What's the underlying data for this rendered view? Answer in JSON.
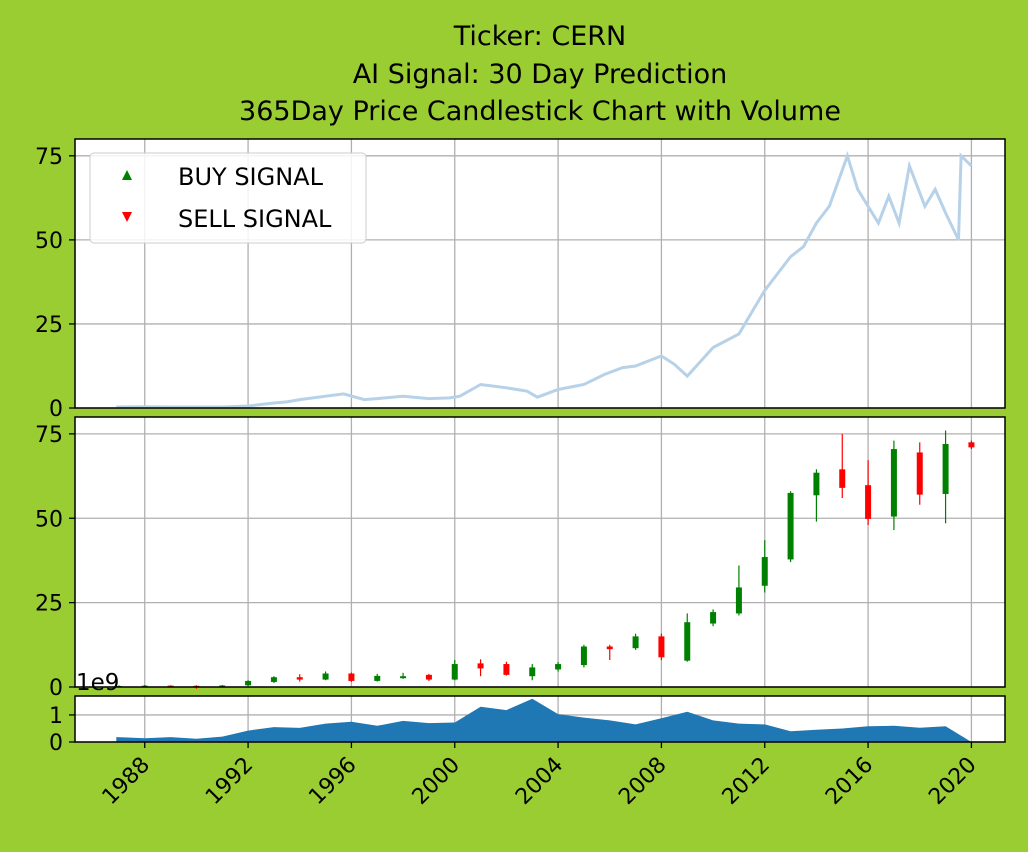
{
  "colors": {
    "background": "#9acd32",
    "price_line": "#b7d2e8",
    "up": "#008000",
    "down": "#ff0000",
    "volume": "#1f77b4",
    "grid": "#b0b0b0"
  },
  "chart_data": [
    {
      "id": "price-line-panel",
      "type": "line",
      "title": [
        "Ticker: CERN",
        "AI Signal: 30 Day Prediction",
        "365Day Price Candlestick Chart with Volume"
      ],
      "ylim": [
        0,
        80
      ],
      "yticks": [
        0,
        25,
        50,
        75
      ],
      "xlim": [
        1985.3,
        2021.3
      ],
      "grid": true,
      "legend": {
        "position": "top-left",
        "entries": [
          {
            "label": "BUY SIGNAL",
            "marker": "triangle-up",
            "color": "#008000"
          },
          {
            "label": "SELL SIGNAL",
            "marker": "triangle-down",
            "color": "#ff0000"
          }
        ]
      },
      "x": [
        1986.9,
        1988,
        1989,
        1990,
        1991,
        1992,
        1993,
        1993.5,
        1994,
        1995,
        1995.7,
        1996.5,
        1997,
        1998,
        1999,
        1999.8,
        2000.2,
        2001,
        2001.5,
        2002,
        2002.8,
        2003.2,
        2004,
        2005,
        2005.8,
        2006.5,
        2007,
        2008,
        2008.5,
        2009,
        2010,
        2011,
        2012,
        2012.5,
        2013,
        2013.5,
        2014,
        2014.5,
        2015.2,
        2015.6,
        2016,
        2016.4,
        2016.8,
        2017.2,
        2017.6,
        2018.2,
        2018.6,
        2019,
        2019.5,
        2019.6,
        2020
      ],
      "values": [
        0.3,
        0.4,
        0.3,
        0.3,
        0.3,
        0.6,
        1.5,
        1.8,
        2.5,
        3.5,
        4.2,
        2.5,
        2.8,
        3.5,
        2.8,
        3.0,
        3.5,
        7.0,
        6.5,
        6.0,
        5.0,
        3.2,
        5.5,
        7.0,
        10.0,
        12.0,
        12.5,
        15.5,
        13.0,
        9.5,
        18.0,
        22.0,
        35.0,
        40.0,
        45.0,
        48.0,
        55.0,
        60.0,
        75.0,
        65.0,
        60.0,
        55.0,
        63.0,
        55.0,
        72.0,
        60.0,
        65.0,
        58.0,
        50.0,
        75.0,
        72.0
      ]
    },
    {
      "id": "candlestick-panel",
      "type": "candlestick",
      "ylim": [
        0,
        80
      ],
      "yticks": [
        0,
        25,
        50,
        75
      ],
      "xlim": [
        1985.3,
        2021.3
      ],
      "grid": true,
      "candles": [
        {
          "x": 1987,
          "open": 0.2,
          "high": 0.5,
          "low": 0.1,
          "close": 0.3
        },
        {
          "x": 1988,
          "open": 0.3,
          "high": 0.6,
          "low": 0.2,
          "close": 0.4
        },
        {
          "x": 1989,
          "open": 0.4,
          "high": 0.5,
          "low": 0.2,
          "close": 0.3
        },
        {
          "x": 1990,
          "open": 0.35,
          "high": 0.5,
          "low": -0.5,
          "close": 0.1
        },
        {
          "x": 1991,
          "open": 0.1,
          "high": 0.6,
          "low": 0.0,
          "close": 0.45
        },
        {
          "x": 1992,
          "open": 0.5,
          "high": 2.0,
          "low": 0.3,
          "close": 1.8
        },
        {
          "x": 1993,
          "open": 1.5,
          "high": 3.2,
          "low": 1.2,
          "close": 2.9
        },
        {
          "x": 1994,
          "open": 2.9,
          "high": 3.8,
          "low": 1.6,
          "close": 2.2
        },
        {
          "x": 1995,
          "open": 2.2,
          "high": 4.6,
          "low": 2.0,
          "close": 4.0
        },
        {
          "x": 1996,
          "open": 4.0,
          "high": 4.3,
          "low": 1.5,
          "close": 1.8
        },
        {
          "x": 1997,
          "open": 1.8,
          "high": 3.9,
          "low": 1.6,
          "close": 3.3
        },
        {
          "x": 1998,
          "open": 2.6,
          "high": 4.2,
          "low": 2.4,
          "close": 3.2
        },
        {
          "x": 1999,
          "open": 3.6,
          "high": 3.9,
          "low": 1.8,
          "close": 2.2
        },
        {
          "x": 2000,
          "open": 2.2,
          "high": 8.0,
          "low": 2.0,
          "close": 6.8
        },
        {
          "x": 2001,
          "open": 7.0,
          "high": 8.2,
          "low": 3.2,
          "close": 5.5
        },
        {
          "x": 2002,
          "open": 6.8,
          "high": 7.5,
          "low": 3.4,
          "close": 3.6
        },
        {
          "x": 2003,
          "open": 3.2,
          "high": 6.8,
          "low": 2.0,
          "close": 5.8
        },
        {
          "x": 2004,
          "open": 5.2,
          "high": 7.4,
          "low": 4.6,
          "close": 6.8
        },
        {
          "x": 2005,
          "open": 6.5,
          "high": 12.5,
          "low": 5.8,
          "close": 12.0
        },
        {
          "x": 2006,
          "open": 12.0,
          "high": 12.5,
          "low": 8.0,
          "close": 11.2
        },
        {
          "x": 2007,
          "open": 11.5,
          "high": 15.8,
          "low": 11.0,
          "close": 15.0
        },
        {
          "x": 2008,
          "open": 15.0,
          "high": 15.8,
          "low": 8.0,
          "close": 8.8
        },
        {
          "x": 2009,
          "open": 7.8,
          "high": 21.8,
          "low": 7.5,
          "close": 19.2
        },
        {
          "x": 2010,
          "open": 18.8,
          "high": 23.0,
          "low": 18.0,
          "close": 22.2
        },
        {
          "x": 2011,
          "open": 21.8,
          "high": 36.0,
          "low": 21.2,
          "close": 29.5
        },
        {
          "x": 2012,
          "open": 30.0,
          "high": 43.5,
          "low": 28.0,
          "close": 38.5
        },
        {
          "x": 2013,
          "open": 37.8,
          "high": 58.0,
          "low": 37.0,
          "close": 57.5
        },
        {
          "x": 2014,
          "open": 56.8,
          "high": 64.5,
          "low": 49.0,
          "close": 63.5
        },
        {
          "x": 2015,
          "open": 64.5,
          "high": 75.0,
          "low": 56.0,
          "close": 59.0
        },
        {
          "x": 2016,
          "open": 59.8,
          "high": 67.2,
          "low": 48.0,
          "close": 49.8
        },
        {
          "x": 2017,
          "open": 50.5,
          "high": 73.0,
          "low": 46.5,
          "close": 70.5
        },
        {
          "x": 2018,
          "open": 69.5,
          "high": 72.5,
          "low": 54.0,
          "close": 57.0
        },
        {
          "x": 2019,
          "open": 57.2,
          "high": 76.0,
          "low": 48.5,
          "close": 72.0
        },
        {
          "x": 2020,
          "open": 72.5,
          "high": 73.0,
          "low": 70.5,
          "close": 71.0
        }
      ]
    },
    {
      "id": "volume-panel",
      "type": "area",
      "offset_label": "1e9",
      "ylim": [
        0,
        1.7
      ],
      "yticks": [
        0,
        1
      ],
      "xlim": [
        1985.3,
        2021.3
      ],
      "grid": true,
      "x": [
        1986.9,
        1988,
        1989,
        1990,
        1991,
        1992,
        1993,
        1994,
        1995,
        1996,
        1997,
        1998,
        1999,
        2000,
        2001,
        2002,
        2003,
        2004,
        2005,
        2006,
        2007,
        2008,
        2009,
        2010,
        2011,
        2012,
        2013,
        2014,
        2015,
        2016,
        2017,
        2018,
        2019,
        2020,
        2021
      ],
      "values": [
        0.18,
        0.14,
        0.18,
        0.12,
        0.2,
        0.42,
        0.55,
        0.52,
        0.68,
        0.75,
        0.6,
        0.78,
        0.7,
        0.72,
        1.3,
        1.18,
        1.6,
        1.03,
        0.9,
        0.8,
        0.65,
        0.88,
        1.12,
        0.8,
        0.68,
        0.65,
        0.4,
        0.45,
        0.5,
        0.58,
        0.6,
        0.53,
        0.58,
        0.0,
        0.0
      ],
      "xticks": [
        1988,
        1992,
        1996,
        2000,
        2004,
        2008,
        2012,
        2016,
        2020
      ]
    }
  ]
}
